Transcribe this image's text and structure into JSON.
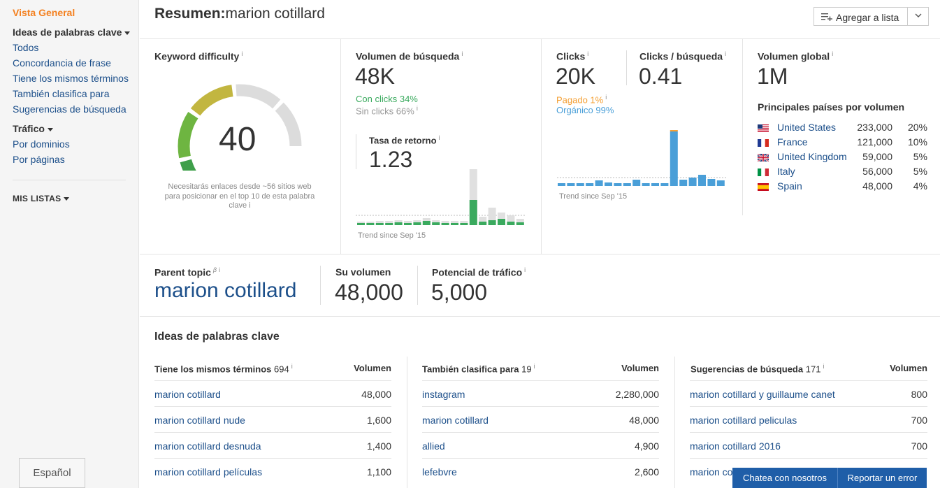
{
  "sidebar": {
    "vista_general": "Vista General",
    "ideas_heading": "Ideas de palabras clave",
    "ideas_links": [
      "Todos",
      "Concordancia de frase",
      "Tiene los mismos términos",
      "También clasifica para",
      "Sugerencias de búsqueda"
    ],
    "trafico_heading": "Tráfico",
    "trafico_links": [
      "Por dominios",
      "Por páginas"
    ],
    "mis_listas": "MIS LISTAS",
    "language": "Español"
  },
  "header": {
    "title_bold": "Resumen:",
    "title_keyword": "marion cotillard",
    "add_to_list": "Agregar a lista"
  },
  "kd": {
    "label": "Keyword difficulty",
    "info": "i",
    "value": "40",
    "score": 40,
    "note": "Necesitarás enlaces desde ~56 sitios web para posicionar en el top 10 de esta palabra clave",
    "note_info": "i"
  },
  "volume": {
    "label": "Volumen de búsqueda",
    "value": "48K",
    "with_clicks": "Con clicks 34%",
    "without_clicks": "Sin clicks 66%",
    "return_label": "Tasa de retorno",
    "return_value": "1.23",
    "trend": "Trend since Sep '15"
  },
  "clicks": {
    "label": "Clicks",
    "value": "20K",
    "per_search_label": "Clicks / búsqueda",
    "per_search_value": "0.41",
    "paid": "Pagado 1%",
    "organic": "Orgánico 99%",
    "trend": "Trend since Sep '15"
  },
  "global": {
    "label": "Volumen global",
    "value": "1M",
    "countries_title": "Principales países por volumen",
    "countries": [
      {
        "name": "United States",
        "volume": "233,000",
        "pct": "20%"
      },
      {
        "name": "France",
        "volume": "121,000",
        "pct": "10%"
      },
      {
        "name": "United Kingdom",
        "volume": "59,000",
        "pct": "5%"
      },
      {
        "name": "Italy",
        "volume": "56,000",
        "pct": "5%"
      },
      {
        "name": "Spain",
        "volume": "48,000",
        "pct": "4%"
      }
    ]
  },
  "parent": {
    "label": "Parent topic",
    "beta": "β",
    "topic": "marion cotillard",
    "vol_label": "Su volumen",
    "vol_value": "48,000",
    "traffic_label": "Potencial de tráfico",
    "traffic_value": "5,000"
  },
  "ideas": {
    "title": "Ideas de palabras clave",
    "volume_header": "Volumen",
    "columns": [
      {
        "title": "Tiene los mismos términos",
        "count": "694",
        "rows": [
          {
            "kw": "marion cotillard",
            "vol": "48,000"
          },
          {
            "kw": "marion cotillard nude",
            "vol": "1,600"
          },
          {
            "kw": "marion cotillard desnuda",
            "vol": "1,400"
          },
          {
            "kw": "marion cotillard películas",
            "vol": "1,100"
          }
        ]
      },
      {
        "title": "También clasifica para",
        "count": "19",
        "rows": [
          {
            "kw": "instagram",
            "vol": "2,280,000"
          },
          {
            "kw": "marion cotillard",
            "vol": "48,000"
          },
          {
            "kw": "allied",
            "vol": "4,900"
          },
          {
            "kw": "lefebvre",
            "vol": "2,600"
          }
        ]
      },
      {
        "title": "Sugerencias de búsqueda",
        "count": "171",
        "rows": [
          {
            "kw": "marion cotillard y guillaume canet",
            "vol": "800"
          },
          {
            "kw": "marion cotillard peliculas",
            "vol": "700"
          },
          {
            "kw": "marion cotillard 2016",
            "vol": "700"
          },
          {
            "kw": "marion co",
            "vol": ""
          }
        ]
      }
    ]
  },
  "chat": {
    "chat_label": "Chatea con nosotros",
    "report_label": "Reportar un error"
  },
  "charts": {
    "volume_bars_green": [
      3,
      3,
      3,
      3,
      4,
      3,
      4,
      6,
      4,
      3,
      3,
      3,
      36,
      5,
      7,
      9,
      5,
      4
    ],
    "volume_bars_grey": [
      5,
      5,
      6,
      6,
      7,
      6,
      7,
      10,
      7,
      6,
      6,
      6,
      80,
      12,
      25,
      18,
      14,
      9
    ],
    "clicks_bars": [
      4,
      4,
      4,
      4,
      8,
      5,
      4,
      4,
      9,
      4,
      4,
      4,
      78,
      9,
      12,
      16,
      10,
      8
    ],
    "clicks_paid": [
      0,
      0,
      0,
      0,
      0,
      0,
      0,
      0,
      0,
      0,
      0,
      0,
      2,
      0,
      0,
      0,
      0,
      0
    ]
  },
  "colors": {
    "green": "#3aaa5e",
    "blue": "#4a9fd8",
    "orange": "#f4801f",
    "link": "#1c4f8a"
  }
}
